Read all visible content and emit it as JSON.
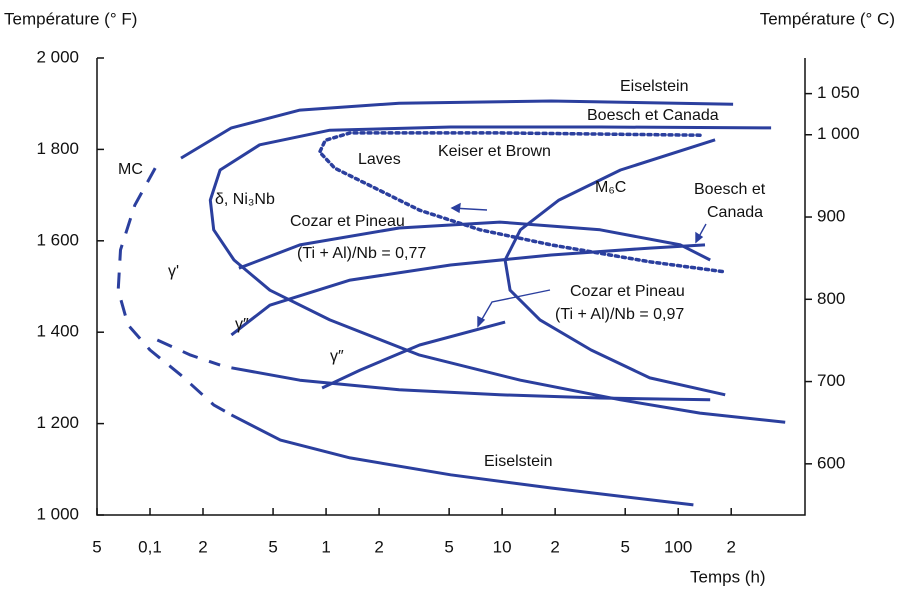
{
  "chart_data": {
    "type": "line",
    "x_label": "Temps (h)",
    "y_label": "Température (° F)",
    "y2_label": "Température (° C)",
    "xscale": "log",
    "xlim": [
      0.05,
      525
    ],
    "xticks": [
      {
        "value": 0.05,
        "label": "5"
      },
      {
        "value": 0.1,
        "label": "0,1"
      },
      {
        "value": 0.2,
        "label": "2"
      },
      {
        "value": 0.5,
        "label": "5"
      },
      1,
      {
        "value": 2,
        "label": "2"
      },
      {
        "value": 5,
        "label": "5"
      },
      10,
      {
        "value": 20,
        "label": "2"
      },
      {
        "value": 50,
        "label": "5"
      },
      100,
      {
        "value": 200,
        "label": "2"
      }
    ],
    "ylim": [
      1000,
      2000
    ],
    "yticks": [
      {
        "value": 1000,
        "label": "1 000"
      },
      {
        "value": 1200,
        "label": "1 200"
      },
      {
        "value": 1400,
        "label": "1 400"
      },
      {
        "value": 1600,
        "label": "1 600"
      },
      {
        "value": 1800,
        "label": "1 800"
      },
      {
        "value": 2000,
        "label": "2 000"
      }
    ],
    "y2lim": [
      537.8,
      1093.3
    ],
    "y2ticks": [
      600,
      700,
      800,
      900,
      {
        "value": 1000,
        "label": "1 000"
      },
      {
        "value": 1050,
        "label": "1 050"
      }
    ],
    "color": "#2b3f9e",
    "series": [
      {
        "style": "solid",
        "x": [
          0.15,
          0.29,
          0.71,
          2.6,
          19,
          205
        ],
        "values": [
          1781,
          1847,
          1886,
          1901,
          1906,
          1899
        ]
      },
      {
        "style": "dashed",
        "x": [
          0.107,
          0.082,
          0.068,
          0.066,
          0.075,
          0.1,
          0.15,
          0.23,
          0.29
        ],
        "values": [
          1759,
          1678,
          1580,
          1492,
          1416,
          1361,
          1306,
          1241,
          1219
        ]
      },
      {
        "style": "solid",
        "x": [
          0.29,
          0.55,
          1.37,
          5.1,
          19,
          122
        ],
        "values": [
          1219,
          1164,
          1125,
          1088,
          1059,
          1022
        ]
      },
      {
        "style": "dashed",
        "x": [
          0.11,
          0.17,
          0.25
        ],
        "values": [
          1383,
          1350,
          1328
        ]
      },
      {
        "style": "solid",
        "x": [
          0.29,
          0.71,
          2.6,
          9.7,
          36,
          152
        ],
        "values": [
          1322,
          1295,
          1274,
          1263,
          1256,
          1252
        ]
      },
      {
        "style": "solid",
        "x": [
          337,
          36,
          5.1,
          1.05,
          0.42,
          0.25,
          0.22,
          0.23,
          0.3,
          0.48,
          1.05,
          3.4,
          12.7,
          47,
          133,
          405
        ],
        "values": [
          1847,
          1849,
          1849,
          1842,
          1810,
          1755,
          1689,
          1624,
          1558,
          1492,
          1427,
          1350,
          1295,
          1252,
          1223,
          1203
        ]
      },
      {
        "style": "dotted",
        "x": [
          133,
          9.7,
          1.37,
          0.99,
          0.92,
          1.12,
          2.0,
          3.4,
          7.5,
          19,
          69,
          185
        ],
        "values": [
          1831,
          1836,
          1836,
          1820,
          1794,
          1759,
          1711,
          1667,
          1624,
          1591,
          1554,
          1532
        ]
      },
      {
        "style": "solid",
        "x": [
          162,
          47,
          21,
          12.7,
          10.4,
          11.1,
          16.4,
          32,
          69,
          185
        ],
        "values": [
          1821,
          1755,
          1689,
          1624,
          1558,
          1492,
          1427,
          1361,
          1300,
          1263
        ]
      },
      {
        "style": "solid",
        "x": [
          0.32,
          0.71,
          2.6,
          9.7,
          36,
          103,
          152
        ],
        "values": [
          1540,
          1591,
          1628,
          1641,
          1624,
          1591,
          1558
        ]
      },
      {
        "style": "solid",
        "x": [
          0.29,
          0.48,
          1.37,
          5.1,
          19,
          69,
          142
        ],
        "values": [
          1394,
          1459,
          1514,
          1547,
          1569,
          1584,
          1591
        ]
      },
      {
        "style": "solid",
        "x": [
          0.95,
          1.56,
          3.4,
          10.4
        ],
        "values": [
          1278,
          1317,
          1372,
          1422
        ]
      }
    ],
    "annotations": [
      "MC",
      "Eiselstein",
      "Boesch et Canada",
      "Laves",
      "Keiser et Brown",
      "δ, Ni₃Nb",
      "M₆C",
      "Boesch et",
      "Canada",
      "Cozar et Pineau",
      "(Ti + Al)/Nb = 0,77",
      "γ'",
      "γ″",
      "γ″",
      "Cozar et Pineau",
      "(Ti + Al)/Nb = 0,97",
      "Eiselstein"
    ]
  }
}
